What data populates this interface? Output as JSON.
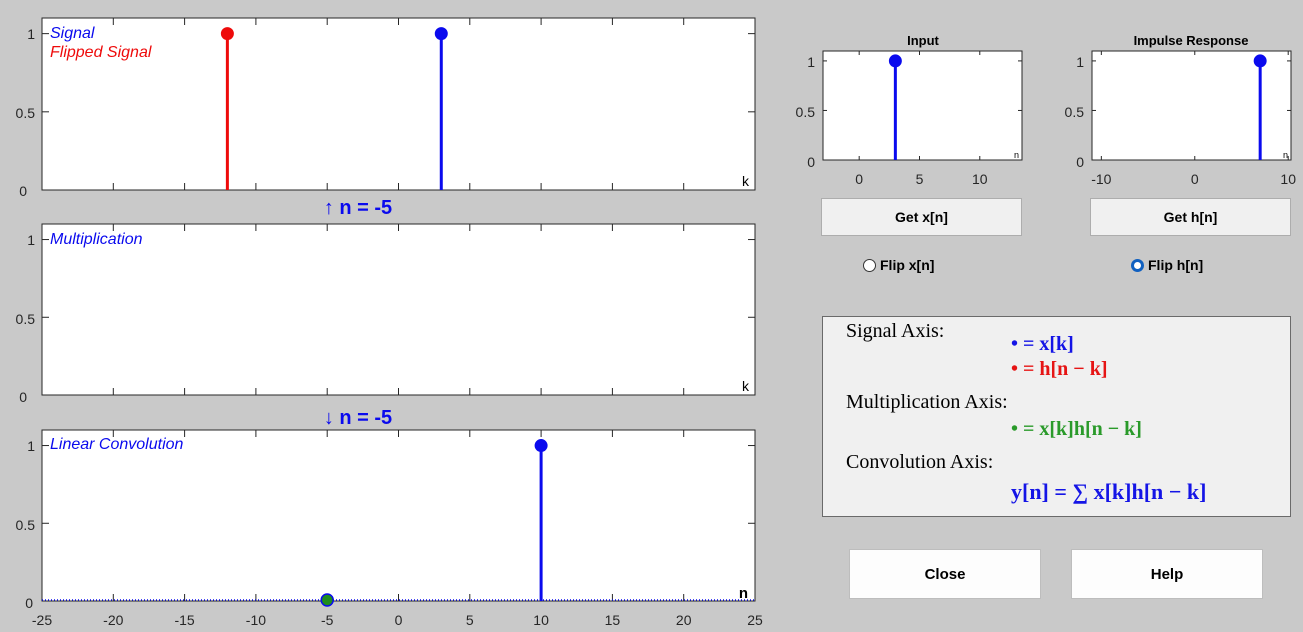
{
  "colors": {
    "signal": "#0a0aee",
    "flipped": "#ee0a0a",
    "product": "#1e8c1e"
  },
  "signal_axis": {
    "legend": [
      "Signal",
      "Flipped Signal"
    ],
    "axis_letter": "k",
    "yticks": [
      "0",
      "0.5",
      "1"
    ]
  },
  "up_arrow_label": "↑ n = -5",
  "multiplication_axis": {
    "legend": "Multiplication",
    "axis_letter": "k",
    "yticks": [
      "0",
      "0.5",
      "1"
    ]
  },
  "down_arrow_label": "↓ n = -5",
  "convolution_axis": {
    "legend": "Linear Convolution",
    "axis_letter": "n",
    "yticks": [
      "0",
      "0.5",
      "1"
    ],
    "xticks": [
      "-25",
      "-20",
      "-15",
      "-10",
      "-5",
      "0",
      "5",
      "10",
      "15",
      "20",
      "25"
    ]
  },
  "input_axis": {
    "title": "Input",
    "axis_letter": "n",
    "yticks": [
      "0",
      "0.5",
      "1"
    ],
    "xticks": [
      "0",
      "5",
      "10"
    ]
  },
  "impulse_axis": {
    "title": "Impulse Response",
    "axis_letter": "n",
    "yticks": [
      "0",
      "0.5",
      "1"
    ],
    "xticks": [
      "-10",
      "0",
      "10"
    ]
  },
  "buttons": {
    "get_x": "Get x[n]",
    "get_h": "Get h[n]",
    "close": "Close",
    "help": "Help"
  },
  "radios": {
    "flip_x": {
      "label": "Flip x[n]",
      "checked": false
    },
    "flip_h": {
      "label": "Flip h[n]",
      "checked": true
    }
  },
  "legend_panel": {
    "signal_axis_heading": "Signal Axis:",
    "signal_eq_1": "• = x[k]",
    "signal_eq_2": "• = h[n − k]",
    "mult_axis_heading": "Multiplication Axis:",
    "mult_eq": "• = x[k]h[n − k]",
    "conv_axis_heading": "Convolution Axis:",
    "conv_eq": "y[n] = ∑ x[k]h[n − k]"
  },
  "chart_data": [
    {
      "type": "stem",
      "name": "signal-axis",
      "xlim": [
        -25,
        25
      ],
      "ylim": [
        0,
        1.1
      ],
      "series": [
        {
          "name": "Signal",
          "x": [
            3
          ],
          "y": [
            1
          ]
        },
        {
          "name": "Flipped Signal",
          "x": [
            -12
          ],
          "y": [
            1
          ]
        }
      ]
    },
    {
      "type": "stem",
      "name": "multiplication-axis",
      "xlim": [
        -25,
        25
      ],
      "ylim": [
        0,
        1.1
      ],
      "series": [
        {
          "name": "Multiplication",
          "x": [],
          "y": []
        }
      ]
    },
    {
      "type": "stem",
      "name": "convolution-axis",
      "xlim": [
        -25,
        25
      ],
      "ylim": [
        0,
        1.1
      ],
      "series": [
        {
          "name": "Linear Convolution",
          "x": [
            10
          ],
          "y": [
            1
          ]
        },
        {
          "x": [
            -5
          ],
          "y": [
            0
          ]
        }
      ]
    },
    {
      "type": "stem",
      "name": "input-axis",
      "title": "Input",
      "xlim": [
        -3,
        13.5
      ],
      "ylim": [
        0,
        1.1
      ],
      "series": [
        {
          "x": [
            3
          ],
          "y": [
            1
          ]
        }
      ]
    },
    {
      "type": "stem",
      "name": "impulse-axis",
      "title": "Impulse Response",
      "xlim": [
        -11,
        10.3
      ],
      "ylim": [
        0,
        1.1
      ],
      "series": [
        {
          "x": [
            7
          ],
          "y": [
            1
          ]
        }
      ]
    }
  ]
}
